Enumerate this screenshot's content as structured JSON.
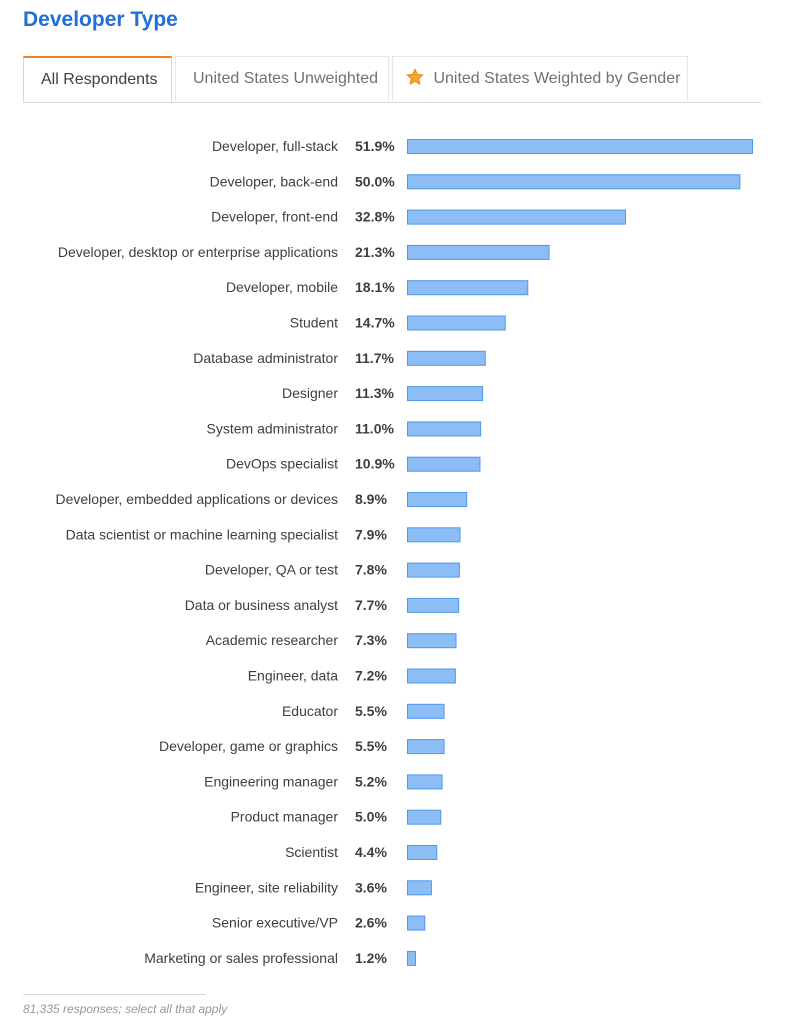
{
  "title": "Developer Type",
  "tabs": [
    {
      "label": "All Respondents",
      "active": true
    },
    {
      "label": "United States Unweighted",
      "active": false
    },
    {
      "label": "United States Weighted by Gender",
      "active": false,
      "icon": "star-icon"
    }
  ],
  "colors": {
    "title": "#1f6fd6",
    "bar_fill": "#8cbdf5",
    "bar_stroke": "#4e97ee",
    "tab_accent": "#f48024",
    "star": "#f7a326"
  },
  "chart_data": {
    "type": "bar",
    "orientation": "horizontal",
    "categories": [
      "Developer, full-stack",
      "Developer, back-end",
      "Developer, front-end",
      "Developer, desktop or enterprise applications",
      "Developer, mobile",
      "Student",
      "Database administrator",
      "Designer",
      "System administrator",
      "DevOps specialist",
      "Developer, embedded applications or devices",
      "Data scientist or machine learning specialist",
      "Developer, QA or test",
      "Data or business analyst",
      "Academic researcher",
      "Engineer, data",
      "Educator",
      "Developer, game or graphics",
      "Engineering manager",
      "Product manager",
      "Scientist",
      "Engineer, site reliability",
      "Senior executive/VP",
      "Marketing or sales professional"
    ],
    "values": [
      51.9,
      50.0,
      32.8,
      21.3,
      18.1,
      14.7,
      11.7,
      11.3,
      11.0,
      10.9,
      8.9,
      7.9,
      7.8,
      7.7,
      7.3,
      7.2,
      5.5,
      5.5,
      5.2,
      5.0,
      4.4,
      3.6,
      2.6,
      1.2
    ],
    "value_labels": [
      "51.9%",
      "50.0%",
      "32.8%",
      "21.3%",
      "18.1%",
      "14.7%",
      "11.7%",
      "11.3%",
      "11.0%",
      "10.9%",
      "8.9%",
      "7.9%",
      "7.8%",
      "7.7%",
      "7.3%",
      "7.2%",
      "5.5%",
      "5.5%",
      "5.2%",
      "5.0%",
      "4.4%",
      "3.6%",
      "2.6%",
      "1.2%"
    ],
    "unit": "%",
    "xlim": [
      0,
      51.9
    ],
    "grid": false,
    "legend": "none"
  },
  "footer": "81,335 responses; select all that apply"
}
